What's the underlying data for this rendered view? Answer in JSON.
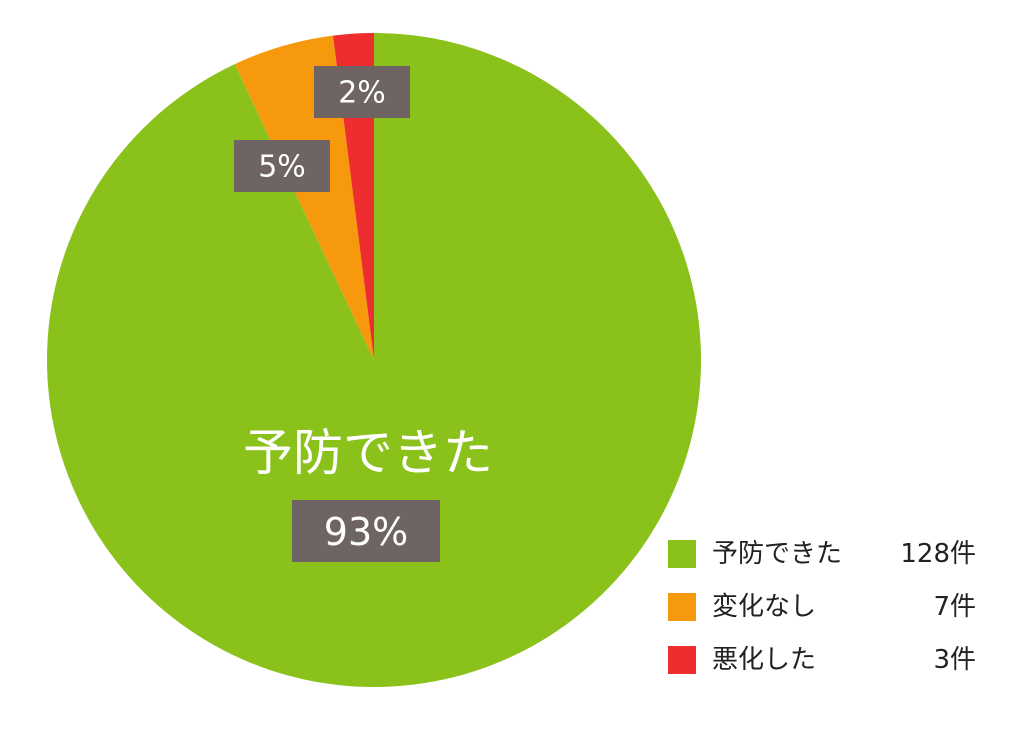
{
  "chart_data": {
    "type": "pie",
    "categories": [
      "予防できた",
      "変化なし",
      "悪化した"
    ],
    "values": [
      93,
      5,
      2
    ],
    "value_labels": [
      "93%",
      "5%",
      "2%"
    ],
    "colors": [
      "#8ac11a",
      "#f7990c",
      "#ee2e2e"
    ],
    "counts": {
      "values": [
        128,
        7,
        3
      ],
      "value_labels": [
        "128件",
        "7件",
        "3件"
      ]
    }
  }
}
